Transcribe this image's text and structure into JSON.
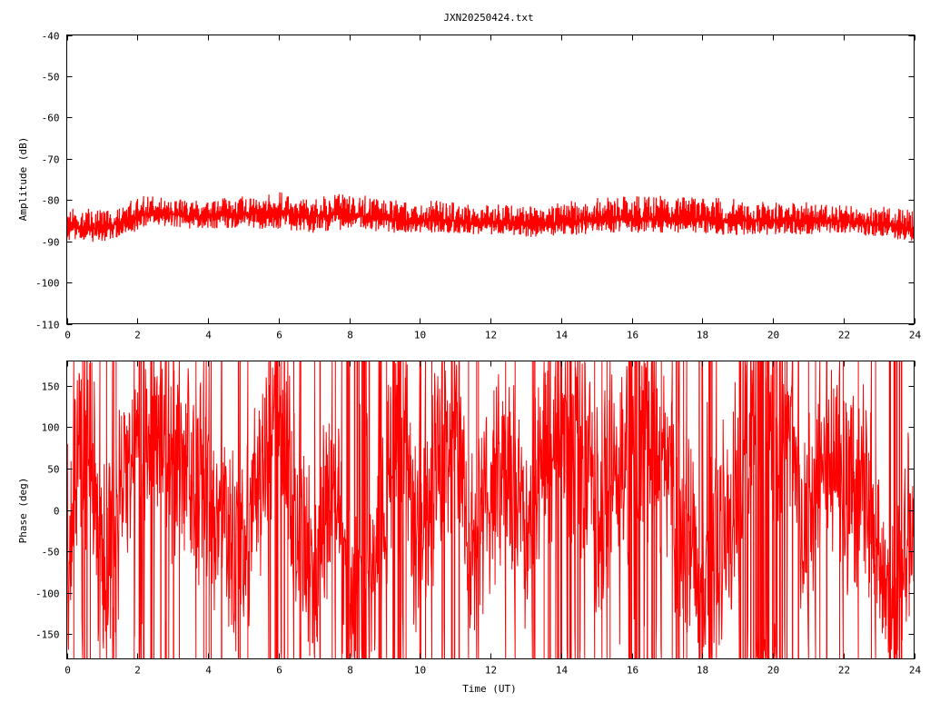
{
  "title": "JXN20250424.txt",
  "colors": {
    "trace": "#ff0000",
    "axes": "#000000",
    "background": "#ffffff"
  },
  "chart_data": [
    {
      "type": "line",
      "ylabel": "Amplitude (dB)",
      "xlabel": "",
      "xlim": [
        0,
        24
      ],
      "ylim": [
        -110,
        -40
      ],
      "xticks": [
        "0",
        "2",
        "4",
        "6",
        "8",
        "10",
        "12",
        "14",
        "16",
        "18",
        "20",
        "22",
        "24"
      ],
      "yticks": [
        "-40",
        "-50",
        "-60",
        "-70",
        "-80",
        "-90",
        "-100",
        "-110"
      ],
      "grid": false,
      "series": [
        {
          "x": [
            0,
            0.5,
            1,
            1.5,
            2,
            2.5,
            3,
            3.5,
            4,
            4.5,
            5,
            5.5,
            6,
            6.5,
            7,
            7.5,
            8,
            8.5,
            9,
            9.5,
            10,
            10.5,
            11,
            11.5,
            12,
            12.5,
            13,
            13.5,
            14,
            14.5,
            15,
            15.5,
            16,
            16.5,
            17,
            17.5,
            18,
            18.5,
            19,
            19.5,
            20,
            20.5,
            21,
            21.5,
            22,
            22.5,
            23,
            23.5,
            24
          ],
          "mean": [
            -86.5,
            -86.5,
            -87,
            -85.5,
            -84,
            -83,
            -83.5,
            -84,
            -84,
            -83.5,
            -83.5,
            -83,
            -83,
            -83.5,
            -84,
            -83.5,
            -83.5,
            -84,
            -84.5,
            -85,
            -85,
            -85,
            -85,
            -85.5,
            -85.5,
            -85.5,
            -86,
            -86,
            -85.5,
            -85,
            -84.5,
            -84.5,
            -84.5,
            -84.5,
            -84.5,
            -84.5,
            -84.5,
            -85,
            -85,
            -85,
            -85,
            -85,
            -85,
            -85,
            -85,
            -85.5,
            -86,
            -86.5,
            -87
          ],
          "min": [
            -90,
            -90,
            -90.5,
            -89,
            -87.5,
            -86,
            -86.5,
            -87,
            -87,
            -87,
            -87,
            -87,
            -87,
            -87.5,
            -88,
            -87.5,
            -87,
            -87.5,
            -88,
            -88,
            -88,
            -88,
            -88,
            -88.5,
            -88.5,
            -88.5,
            -89,
            -89,
            -88.5,
            -88.5,
            -88,
            -88,
            -88,
            -88,
            -88,
            -88,
            -88,
            -88.5,
            -88.5,
            -88.5,
            -88.5,
            -88.5,
            -88.5,
            -88,
            -88,
            -88.5,
            -89,
            -89.5,
            -90
          ],
          "max": [
            -82,
            -82,
            -82.5,
            -82,
            -79,
            -79,
            -79.5,
            -80,
            -80,
            -79.5,
            -79,
            -78,
            -78,
            -79,
            -79.5,
            -78,
            -78.5,
            -79,
            -80,
            -80,
            -80,
            -80,
            -80.5,
            -81,
            -80.5,
            -81,
            -81.5,
            -81.5,
            -80.5,
            -80,
            -79.5,
            -79,
            -79,
            -79,
            -79,
            -79,
            -79,
            -79.5,
            -79.5,
            -80,
            -80.5,
            -80.5,
            -80.5,
            -81,
            -81,
            -81.5,
            -81.5,
            -82,
            -82.5
          ]
        }
      ]
    },
    {
      "type": "line",
      "ylabel": "Phase (deg)",
      "xlabel": "Time (UT)",
      "xlim": [
        0,
        24
      ],
      "ylim": [
        -180,
        180
      ],
      "xticks": [
        "0",
        "2",
        "4",
        "6",
        "8",
        "10",
        "12",
        "14",
        "16",
        "18",
        "20",
        "22",
        "24"
      ],
      "yticks": [
        "150",
        "100",
        "50",
        "0",
        "-50",
        "-100",
        "-150"
      ],
      "grid": false,
      "series": [
        {
          "x": [
            0,
            0.5,
            1,
            1.5,
            2,
            2.5,
            3,
            3.5,
            4,
            4.5,
            5,
            5.5,
            6,
            6.5,
            7,
            7.5,
            8,
            8.5,
            9,
            9.5,
            10,
            10.5,
            11,
            11.5,
            12,
            12.5,
            13,
            13.5,
            14,
            14.5,
            15,
            15.5,
            16,
            16.5,
            17,
            17.5,
            18,
            18.5,
            19,
            19.5,
            20,
            20.5,
            21,
            21.5,
            22,
            22.5,
            23,
            23.5,
            24
          ],
          "y": [
            -40,
            110,
            -60,
            -10,
            130,
            110,
            80,
            40,
            10,
            -30,
            -80,
            60,
            120,
            -20,
            -90,
            40,
            -120,
            -150,
            30,
            90,
            -40,
            80,
            120,
            -60,
            20,
            60,
            -30,
            50,
            130,
            70,
            -10,
            40,
            90,
            110,
            50,
            -20,
            -120,
            -40,
            30,
            150,
            120,
            60,
            -30,
            100,
            40,
            20,
            -60,
            -140,
            40
          ]
        }
      ]
    }
  ]
}
